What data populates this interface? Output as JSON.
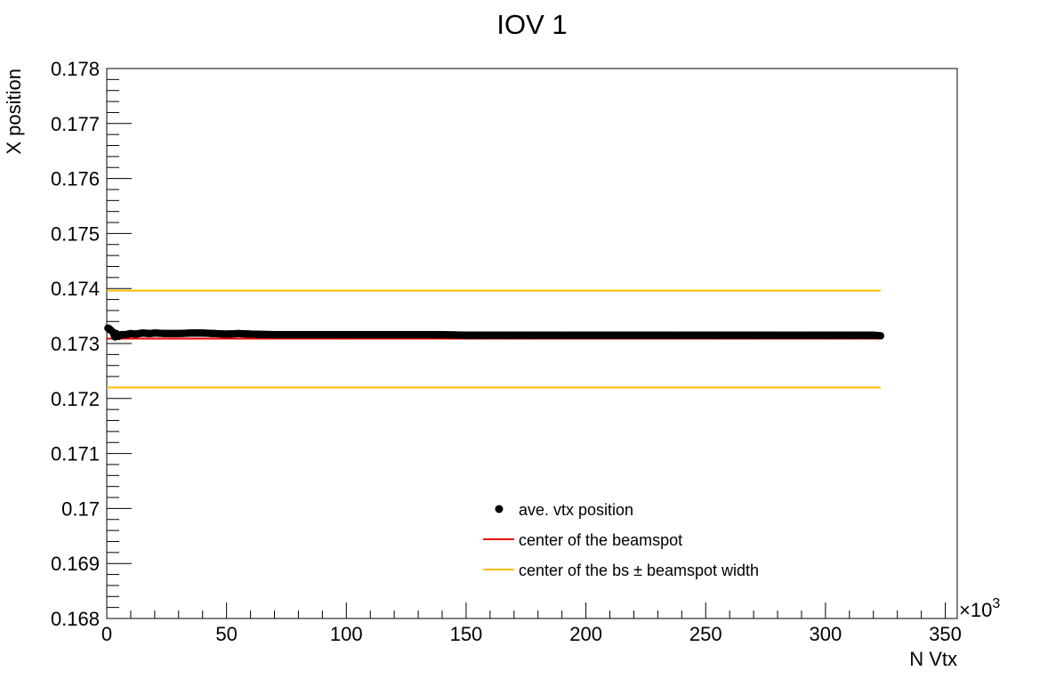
{
  "chart_data": {
    "type": "scatter",
    "title": "IOV 1",
    "xlabel": "N Vtx",
    "ylabel": "X position",
    "x_multiplier_label": "×10",
    "x_multiplier_exponent": "3",
    "xlim": [
      0,
      355
    ],
    "ylim": [
      0.168,
      0.178
    ],
    "xticks": [
      "0",
      "50",
      "100",
      "150",
      "200",
      "250",
      "300",
      "350"
    ],
    "yticks": [
      "0.168",
      "0.169",
      "0.17",
      "0.171",
      "0.172",
      "0.173",
      "0.174",
      "0.175",
      "0.176",
      "0.177",
      "0.178"
    ],
    "grid": false,
    "legend_position": "bottom-center",
    "series": [
      {
        "name": "ave. vtx position",
        "kind": "markers",
        "color": "#000000",
        "x": [
          0.5,
          1,
          1.5,
          2,
          2.5,
          3,
          3.5,
          4,
          5,
          6,
          8,
          10,
          12,
          15,
          18,
          20,
          25,
          30,
          35,
          40,
          45,
          50,
          55,
          60,
          70,
          80,
          90,
          100,
          110,
          120,
          130,
          140,
          150,
          160,
          170,
          180,
          190,
          200,
          210,
          220,
          230,
          240,
          250,
          260,
          270,
          280,
          290,
          300,
          310,
          320,
          323
        ],
        "y": [
          0.17328,
          0.17327,
          0.17325,
          0.17323,
          0.17321,
          0.17316,
          0.17312,
          0.17318,
          0.17313,
          0.17316,
          0.17316,
          0.17318,
          0.17317,
          0.17319,
          0.17318,
          0.17319,
          0.17318,
          0.17318,
          0.17319,
          0.17319,
          0.17318,
          0.17317,
          0.17318,
          0.17317,
          0.17316,
          0.17316,
          0.17316,
          0.17316,
          0.17316,
          0.17316,
          0.17316,
          0.17316,
          0.17315,
          0.17315,
          0.17315,
          0.17315,
          0.17315,
          0.17315,
          0.17315,
          0.17315,
          0.17315,
          0.17315,
          0.17315,
          0.17315,
          0.17315,
          0.17315,
          0.17315,
          0.17315,
          0.17315,
          0.17315,
          0.17314
        ]
      },
      {
        "name": "center of the beamspot",
        "kind": "line",
        "color": "#ee0000",
        "x": [
          0,
          323
        ],
        "y": [
          0.17309,
          0.17309
        ]
      },
      {
        "name": "center of the bs  ± beamspot width",
        "kind": "band",
        "color": "#ffbb00",
        "x": [
          0,
          323
        ],
        "y_upper": [
          0.17396,
          0.17396
        ],
        "y_lower": [
          0.1722,
          0.1722
        ]
      }
    ]
  }
}
